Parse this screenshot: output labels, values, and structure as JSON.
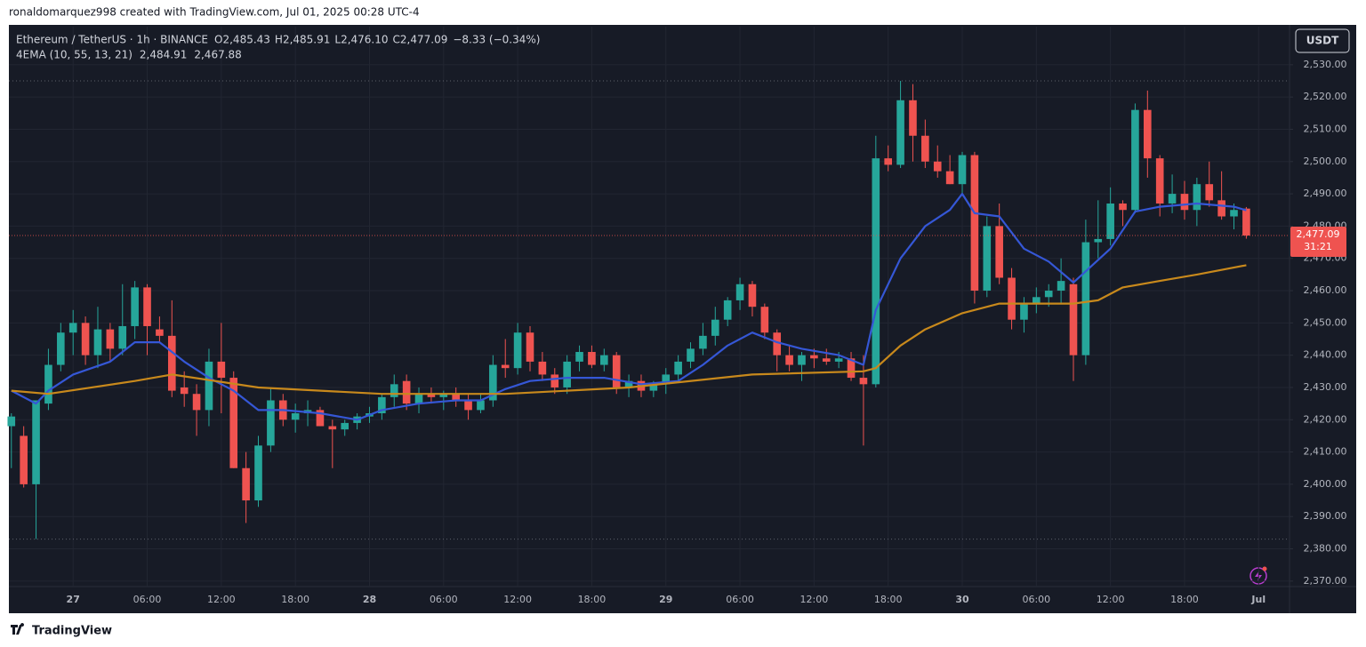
{
  "header": "ronaldomarquez998 created with TradingView.com, Jul 01, 2025 00:28 UTC-4",
  "footer": "TradingView",
  "currency_button": "USDT",
  "chart_data": {
    "type": "candlestick",
    "title": "Ethereum / TetherUS · 1h · BINANCE",
    "ohlc_letters": [
      "O",
      "H",
      "L",
      "C"
    ],
    "ohlc_labels": {
      "open": "2,485.43",
      "high": "2,485.91",
      "low": "2,476.10",
      "close": "2,477.09"
    },
    "change": "−8.33 (−0.34%)",
    "indicator": "4EMA (10, 55, 13, 21)",
    "price_label": "2,477.09",
    "countdown": "31:21",
    "up_color": "#26a69a",
    "down_color": "#ef5350",
    "x": [
      0,
      1,
      2,
      3,
      4,
      5,
      6,
      7,
      8,
      9,
      10,
      11,
      12,
      13,
      14,
      15,
      16,
      17,
      18,
      19,
      20,
      21,
      22,
      23,
      24,
      25,
      26,
      27,
      28,
      29,
      30,
      31,
      32,
      33,
      34,
      35,
      36,
      37,
      38,
      39,
      40,
      41,
      42,
      43,
      44,
      45,
      46,
      47,
      48,
      49,
      50,
      51,
      52,
      53,
      54,
      55,
      56,
      57,
      58,
      59,
      60,
      61,
      62,
      63,
      64,
      65,
      66,
      67,
      68,
      69,
      70,
      71,
      72,
      73,
      74,
      75,
      76,
      77,
      78,
      79,
      80,
      81,
      82,
      83,
      84,
      85,
      86,
      87,
      88,
      89,
      90,
      91,
      92,
      93,
      94,
      95,
      96,
      97,
      98,
      99,
      100
    ],
    "open": [
      2418,
      2415,
      2400,
      2425,
      2437,
      2447,
      2450,
      2440,
      2448,
      2442,
      2449,
      2461,
      2448,
      2446,
      2430,
      2428,
      2423,
      2438,
      2433,
      2405,
      2395,
      2412,
      2426,
      2420,
      2422,
      2423,
      2418,
      2417,
      2419,
      2421,
      2422,
      2427,
      2432,
      2425,
      2428,
      2427,
      2428,
      2426,
      2423,
      2426,
      2437,
      2436,
      2447,
      2438,
      2434,
      2430,
      2438,
      2441,
      2437,
      2440,
      2430,
      2432,
      2429,
      2431,
      2434,
      2438,
      2442,
      2446,
      2451,
      2457,
      2462,
      2455,
      2447,
      2440,
      2437,
      2440,
      2439,
      2438,
      2439,
      2433,
      2431,
      2501,
      2499,
      2519,
      2508,
      2500,
      2497,
      2493,
      2502,
      2460,
      2480,
      2464,
      2451,
      2456,
      2458,
      2460,
      2462,
      2440,
      2475,
      2476,
      2487,
      2485,
      2516,
      2501,
      2487,
      2490,
      2485,
      2493,
      2488,
      2483,
      2485.43
    ],
    "high": [
      2422,
      2418,
      2426,
      2442,
      2450,
      2454,
      2452,
      2455,
      2450,
      2462,
      2463,
      2462,
      2452,
      2457,
      2435,
      2431,
      2442,
      2450,
      2435,
      2410,
      2415,
      2430,
      2428,
      2425,
      2426,
      2424,
      2420,
      2420,
      2422,
      2424,
      2428,
      2434,
      2434,
      2430,
      2430,
      2429,
      2430,
      2428,
      2428,
      2440,
      2445,
      2450,
      2449,
      2441,
      2436,
      2440,
      2443,
      2443,
      2442,
      2441,
      2434,
      2434,
      2432,
      2436,
      2440,
      2444,
      2450,
      2455,
      2458,
      2464,
      2463,
      2456,
      2448,
      2443,
      2441,
      2442,
      2442,
      2441,
      2441,
      2440,
      2508,
      2505,
      2525,
      2524,
      2513,
      2505,
      2502,
      2503,
      2503,
      2483,
      2487,
      2467,
      2458,
      2461,
      2462,
      2470,
      2464,
      2482,
      2488,
      2492,
      2488,
      2518,
      2522,
      2502,
      2496,
      2494,
      2495,
      2500,
      2497,
      2487,
      2485.91
    ],
    "low": [
      2405,
      2399,
      2383,
      2423,
      2435,
      2440,
      2437,
      2436,
      2438,
      2440,
      2445,
      2440,
      2444,
      2427,
      2424,
      2415,
      2418,
      2422,
      2405,
      2388,
      2393,
      2410,
      2418,
      2416,
      2418,
      2418,
      2405,
      2415,
      2417,
      2419,
      2420,
      2424,
      2423,
      2422,
      2425,
      2423,
      2424,
      2420,
      2422,
      2424,
      2433,
      2434,
      2435,
      2432,
      2428,
      2428,
      2435,
      2436,
      2435,
      2428,
      2427,
      2427,
      2427,
      2428,
      2432,
      2436,
      2440,
      2443,
      2449,
      2454,
      2452,
      2445,
      2435,
      2435,
      2432,
      2436,
      2437,
      2436,
      2432,
      2412,
      2430,
      2497,
      2498,
      2500,
      2498,
      2495,
      2493,
      2490,
      2456,
      2458,
      2462,
      2448,
      2447,
      2453,
      2455,
      2456,
      2432,
      2437,
      2470,
      2474,
      2480,
      2484,
      2495,
      2483,
      2484,
      2482,
      2480,
      2486,
      2482,
      2479,
      2476.1
    ],
    "close": [
      2421,
      2400,
      2426,
      2437,
      2447,
      2450,
      2440,
      2448,
      2442,
      2449,
      2461,
      2449,
      2446,
      2429,
      2428,
      2423,
      2438,
      2433,
      2405,
      2395,
      2412,
      2426,
      2420,
      2422,
      2423,
      2418,
      2417,
      2419,
      2421,
      2422,
      2427,
      2431,
      2425,
      2428,
      2427,
      2428,
      2426,
      2423,
      2426,
      2437,
      2436,
      2447,
      2438,
      2434,
      2430,
      2438,
      2441,
      2437,
      2440,
      2430,
      2432,
      2429,
      2431,
      2434,
      2438,
      2442,
      2446,
      2451,
      2457,
      2462,
      2455,
      2447,
      2440,
      2437,
      2440,
      2439,
      2438,
      2439,
      2433,
      2431,
      2501,
      2499,
      2519,
      2508,
      2500,
      2497,
      2493,
      2502,
      2460,
      2480,
      2464,
      2451,
      2456,
      2458,
      2460,
      2463,
      2440,
      2475,
      2476,
      2487,
      2485,
      2516,
      2501,
      2487,
      2490,
      2485,
      2493,
      2488,
      2483,
      2485,
      2477.09
    ],
    "series": [
      {
        "color": "#3557d6",
        "last_label": "2,484.91",
        "x": [
          0,
          2,
          3,
          5,
          8,
          10,
          12,
          14,
          16,
          18,
          20,
          22,
          25,
          28,
          30,
          33,
          36,
          38,
          40,
          42,
          45,
          48,
          51,
          54,
          56,
          58,
          60,
          62,
          64,
          67,
          69,
          70,
          72,
          74,
          76,
          77,
          78,
          80,
          82,
          84,
          86,
          87,
          89,
          91,
          93,
          96,
          99,
          100
        ],
        "values": [
          2429,
          2425,
          2429,
          2434,
          2438,
          2444,
          2444,
          2438,
          2433,
          2429,
          2423,
          2423,
          2422,
          2420,
          2423,
          2425,
          2426,
          2426,
          2429.5,
          2432,
          2433,
          2433,
          2431,
          2432,
          2437,
          2443,
          2447,
          2444,
          2442,
          2440,
          2437,
          2454,
          2470,
          2480,
          2485,
          2490,
          2484,
          2483,
          2473,
          2469,
          2462.5,
          2466,
          2473,
          2484.5,
          2486,
          2487,
          2486,
          2484.91
        ]
      },
      {
        "color": "#c8891c",
        "last_label": "2,467.88",
        "x": [
          0,
          3,
          10,
          13,
          20,
          30,
          40,
          50,
          60,
          69,
          70,
          72,
          74,
          77,
          80,
          86,
          88,
          90,
          93,
          96,
          100
        ],
        "values": [
          2429,
          2428,
          2432,
          2434,
          2430,
          2428,
          2428,
          2430,
          2434,
          2435,
          2436,
          2443,
          2448,
          2453,
          2456,
          2456,
          2457,
          2461,
          2463,
          2465,
          2467.88
        ]
      }
    ],
    "xlim": [
      -0.2,
      103.5
    ],
    "xticks": [
      {
        "value": 5,
        "label": "27"
      },
      {
        "value": 11,
        "label": "06:00"
      },
      {
        "value": 17,
        "label": "12:00"
      },
      {
        "value": 23,
        "label": "18:00"
      },
      {
        "value": 29,
        "label": "28"
      },
      {
        "value": 35,
        "label": "06:00"
      },
      {
        "value": 41,
        "label": "12:00"
      },
      {
        "value": 47,
        "label": "18:00"
      },
      {
        "value": 53,
        "label": "29"
      },
      {
        "value": 59,
        "label": "06:00"
      },
      {
        "value": 65,
        "label": "12:00"
      },
      {
        "value": 71,
        "label": "18:00"
      },
      {
        "value": 77,
        "label": "30"
      },
      {
        "value": 83,
        "label": "06:00"
      },
      {
        "value": 89,
        "label": "12:00"
      },
      {
        "value": 95,
        "label": "18:00"
      },
      {
        "value": 101,
        "label": "Jul"
      }
    ],
    "ylim": [
      2368.3,
      2541.8
    ],
    "yticks": [
      {
        "value": 2370,
        "label": "2,370.00"
      },
      {
        "value": 2380,
        "label": "2,380.00"
      },
      {
        "value": 2390,
        "label": "2,390.00"
      },
      {
        "value": 2400,
        "label": "2,400.00"
      },
      {
        "value": 2410,
        "label": "2,410.00"
      },
      {
        "value": 2420,
        "label": "2,420.00"
      },
      {
        "value": 2430,
        "label": "2,430.00"
      },
      {
        "value": 2440,
        "label": "2,440.00"
      },
      {
        "value": 2450,
        "label": "2,450.00"
      },
      {
        "value": 2460,
        "label": "2,460.00"
      },
      {
        "value": 2470,
        "label": "2,470.00"
      },
      {
        "value": 2480,
        "label": "2,480.00"
      },
      {
        "value": 2490,
        "label": "2,490.00"
      },
      {
        "value": 2500,
        "label": "2,500.00"
      },
      {
        "value": 2510,
        "label": "2,510.00"
      },
      {
        "value": 2520,
        "label": "2,520.00"
      },
      {
        "value": 2530,
        "label": "2,530.00"
      }
    ],
    "grid": true
  }
}
